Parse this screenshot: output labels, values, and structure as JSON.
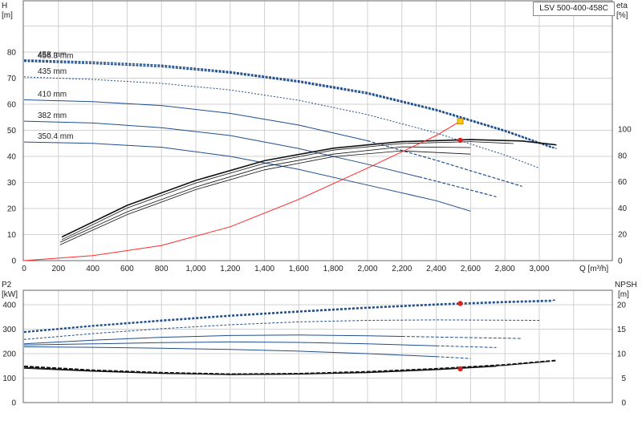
{
  "chart_title": "LSV 500-400-458C",
  "chart_data": [
    {
      "type": "line",
      "panel": "head-efficiency",
      "title": "LSV 500-400-458C",
      "y_left": {
        "label": "H",
        "unit": "[m]",
        "range": [
          0,
          90
        ],
        "ticks": [
          0,
          10,
          20,
          30,
          40,
          50,
          60,
          70,
          80
        ]
      },
      "y_right": {
        "label": "eta",
        "unit": "[%]",
        "range": [
          0,
          140
        ],
        "ticks": [
          0,
          20,
          40,
          60,
          80,
          100
        ]
      },
      "x": {
        "label": "Q [m³/h]",
        "range": [
          0,
          3300
        ],
        "ticks": [
          0,
          200,
          400,
          600,
          800,
          1000,
          1200,
          1400,
          1600,
          1800,
          2000,
          2200,
          2400,
          2600,
          2800,
          3000
        ],
        "tick_labels": [
          "0",
          "200",
          "400",
          "600",
          "800",
          "1,000",
          "1,200",
          "1,400",
          "1,600",
          "1,800",
          "2,000",
          "2,200",
          "2,400",
          "2,600",
          "2,800",
          "3,000"
        ]
      },
      "head_series": [
        {
          "name": "458 mm",
          "points": [
            [
              0,
              77
            ],
            [
              400,
              76.2
            ],
            [
              800,
              75
            ],
            [
              1200,
              72.5
            ],
            [
              1600,
              69
            ],
            [
              2000,
              64.5
            ],
            [
              2400,
              58
            ],
            [
              2800,
              50
            ],
            [
              3100,
              43
            ]
          ]
        },
        {
          "name": "456.3 mm",
          "points": [
            [
              0,
              76.5
            ],
            [
              400,
              75.6
            ],
            [
              800,
              74.4
            ],
            [
              1200,
              72
            ],
            [
              1600,
              68.5
            ],
            [
              2000,
              64
            ],
            [
              2400,
              57.6
            ],
            [
              2800,
              49.6
            ],
            [
              3080,
              43.2
            ]
          ]
        },
        {
          "name": "435 mm",
          "points": [
            [
              0,
              70.5
            ],
            [
              400,
              69.5
            ],
            [
              800,
              68
            ],
            [
              1200,
              65.5
            ],
            [
              1600,
              61.5
            ],
            [
              2000,
              56
            ],
            [
              2400,
              49
            ],
            [
              2800,
              40.5
            ],
            [
              3000,
              35.5
            ]
          ]
        },
        {
          "name": "410 mm",
          "points": [
            [
              0,
              61.7
            ],
            [
              400,
              61
            ],
            [
              800,
              59.5
            ],
            [
              1200,
              56.5
            ],
            [
              1600,
              52
            ],
            [
              2000,
              46
            ],
            [
              2400,
              38.5
            ],
            [
              2900,
              28.5
            ]
          ]
        },
        {
          "name": "382 mm",
          "points": [
            [
              0,
              53.5
            ],
            [
              400,
              52.8
            ],
            [
              800,
              51
            ],
            [
              1200,
              48
            ],
            [
              1600,
              43
            ],
            [
              2000,
              37
            ],
            [
              2400,
              30.5
            ],
            [
              2750,
              24.5
            ]
          ]
        },
        {
          "name": "350.4 mm",
          "points": [
            [
              0,
              45.5
            ],
            [
              400,
              45
            ],
            [
              800,
              43.5
            ],
            [
              1200,
              40
            ],
            [
              1600,
              35
            ],
            [
              2000,
              29
            ],
            [
              2400,
              23
            ],
            [
              2600,
              19
            ]
          ]
        }
      ],
      "efficiency_series": [
        {
          "name": "",
          "points": [
            [
              220,
              18
            ],
            [
              600,
              42
            ],
            [
              1000,
              61
            ],
            [
              1400,
              76
            ],
            [
              1800,
              85.5
            ],
            [
              2200,
              90.5
            ],
            [
              2600,
              92
            ],
            [
              2900,
              91
            ],
            [
              3100,
              88
            ]
          ]
        },
        {
          "name": "",
          "points": [
            [
              220,
              16
            ],
            [
              600,
              40
            ],
            [
              1000,
              59
            ],
            [
              1400,
              74
            ],
            [
              1800,
              84
            ],
            [
              2200,
              89
            ],
            [
              2600,
              90.5
            ],
            [
              2850,
              89
            ]
          ]
        },
        {
          "name": "",
          "points": [
            [
              210,
              14
            ],
            [
              600,
              37
            ],
            [
              1000,
              56
            ],
            [
              1400,
              71.5
            ],
            [
              1800,
              81
            ],
            [
              2200,
              86.5
            ],
            [
              2600,
              86
            ]
          ]
        },
        {
          "name": "",
          "points": [
            [
              210,
              12
            ],
            [
              600,
              35
            ],
            [
              1000,
              54
            ],
            [
              1400,
              69
            ],
            [
              1800,
              79
            ],
            [
              2200,
              83.5
            ],
            [
              2600,
              81
            ]
          ]
        }
      ],
      "system_curve": {
        "points": [
          [
            0,
            0
          ],
          [
            400,
            1.9
          ],
          [
            800,
            5.8
          ],
          [
            1200,
            13
          ],
          [
            1600,
            23.5
          ],
          [
            2000,
            35.5
          ],
          [
            2400,
            48
          ],
          [
            2540,
            53.5
          ]
        ]
      },
      "duty_point": {
        "Q": 2540,
        "H": 53.5
      },
      "bep_point": {
        "Q": 2540,
        "eta": 91.5
      },
      "grid": true
    },
    {
      "type": "line",
      "panel": "power-npsh",
      "y_left": {
        "label": "P2",
        "unit": "[kW]",
        "range": [
          0,
          440
        ],
        "ticks": [
          0,
          100,
          200,
          300,
          400
        ]
      },
      "y_right": {
        "label": "NPSH",
        "unit": "[m]",
        "range": [
          0,
          22
        ],
        "ticks": [
          0,
          5,
          10,
          15,
          20
        ]
      },
      "x": {
        "range": [
          0,
          3300
        ],
        "ticks": [
          0,
          200,
          400,
          600,
          800,
          1000,
          1200,
          1400,
          1600,
          1800,
          2000,
          2200,
          2400,
          2600,
          2800,
          3000
        ]
      },
      "power_series": [
        {
          "name": "458 mm",
          "points": [
            [
              0,
              290
            ],
            [
              400,
              315
            ],
            [
              800,
              337
            ],
            [
              1200,
              357
            ],
            [
              1600,
              374
            ],
            [
              2000,
              390
            ],
            [
              2400,
              403
            ],
            [
              2800,
              413
            ],
            [
              3100,
              419
            ]
          ]
        },
        {
          "name": "456.3 mm",
          "points": [
            [
              0,
              287
            ],
            [
              400,
              312
            ],
            [
              800,
              333
            ],
            [
              1200,
              353
            ],
            [
              1600,
              370
            ],
            [
              2000,
              386
            ],
            [
              2400,
              399
            ],
            [
              2800,
              409
            ],
            [
              3080,
              414
            ]
          ]
        },
        {
          "name": "435 mm",
          "points": [
            [
              0,
              258
            ],
            [
              400,
              282
            ],
            [
              800,
              302
            ],
            [
              1200,
              318
            ],
            [
              1600,
              330
            ],
            [
              2000,
              336
            ],
            [
              2400,
              338
            ],
            [
              3000,
              336
            ]
          ]
        },
        {
          "name": "410 mm",
          "points": [
            [
              0,
              240
            ],
            [
              400,
              255
            ],
            [
              800,
              267
            ],
            [
              1200,
              274
            ],
            [
              1600,
              276
            ],
            [
              2000,
              273
            ],
            [
              2400,
              268
            ],
            [
              2900,
              262
            ]
          ]
        },
        {
          "name": "382 mm",
          "points": [
            [
              0,
              235
            ],
            [
              400,
              240
            ],
            [
              800,
              245
            ],
            [
              1200,
              248
            ],
            [
              1600,
              246
            ],
            [
              2000,
              240
            ],
            [
              2400,
              232
            ],
            [
              2750,
              225
            ]
          ]
        },
        {
          "name": "350.4 mm",
          "points": [
            [
              0,
              228
            ],
            [
              400,
              226
            ],
            [
              800,
              222
            ],
            [
              1200,
              217
            ],
            [
              1600,
              210
            ],
            [
              2000,
              200
            ],
            [
              2400,
              188
            ],
            [
              2600,
              180
            ]
          ]
        }
      ],
      "npsh_series": [
        {
          "name": "",
          "points": [
            [
              0,
              7.4
            ],
            [
              400,
              6.6
            ],
            [
              800,
              6.1
            ],
            [
              1200,
              5.8
            ],
            [
              1600,
              5.9
            ],
            [
              2000,
              6.3
            ],
            [
              2400,
              6.9
            ],
            [
              2800,
              7.7
            ],
            [
              3100,
              8.6
            ]
          ]
        },
        {
          "name": "",
          "points": [
            [
              0,
              7.2
            ],
            [
              400,
              6.5
            ],
            [
              800,
              6.0
            ],
            [
              1200,
              5.75
            ],
            [
              1600,
              5.85
            ],
            [
              2000,
              6.2
            ],
            [
              2400,
              6.8
            ],
            [
              2800,
              7.6
            ],
            [
              3050,
              8.4
            ]
          ]
        },
        {
          "name": "",
          "points": [
            [
              0,
              7.0
            ],
            [
              400,
              6.4
            ],
            [
              800,
              5.95
            ],
            [
              1200,
              5.7
            ],
            [
              1600,
              5.8
            ],
            [
              2000,
              6.1
            ],
            [
              2400,
              6.7
            ],
            [
              2750,
              7.4
            ]
          ]
        }
      ],
      "power_point": {
        "Q": 2540,
        "P2": 405
      },
      "npsh_point": {
        "Q": 2540,
        "NPSH": 6.9
      },
      "grid": true
    }
  ],
  "colors": {
    "head": "#1f4e8c",
    "efficiency": "#111111",
    "system": "#ff2a2a",
    "duty": "#f5c518",
    "marker": "#e02020",
    "grid": "#d0d0d0"
  }
}
